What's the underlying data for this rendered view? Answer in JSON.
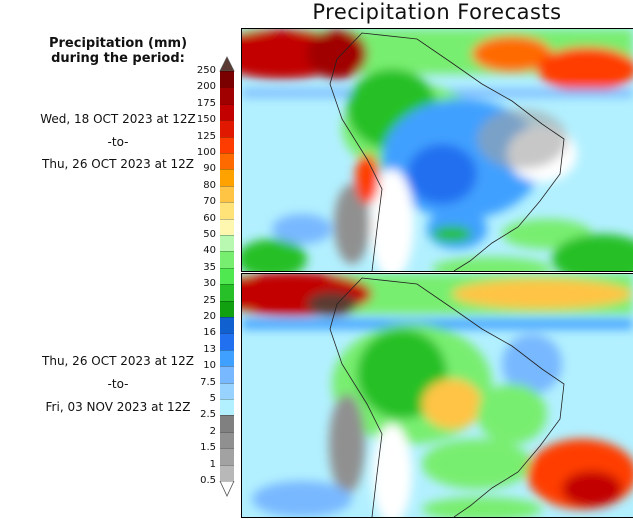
{
  "title": "Precipitation Forecasts",
  "legend": {
    "heading_line1": "Precipitation (mm)",
    "heading_line2": "during the period:",
    "labels": [
      "250",
      "200",
      "175",
      "150",
      "125",
      "100",
      "90",
      "80",
      "70",
      "60",
      "50",
      "40",
      "35",
      "30",
      "25",
      "20",
      "16",
      "13",
      "10",
      "7.5",
      "5",
      "2.5",
      "2",
      "1.5",
      "1",
      "0.5"
    ],
    "bin_colors": [
      "#7a0000",
      "#a00000",
      "#c20000",
      "#e01800",
      "#ff3c00",
      "#ff6a00",
      "#ffa200",
      "#ffc444",
      "#ffe278",
      "#fff6b0",
      "#b8f8b0",
      "#78ee70",
      "#50e850",
      "#28c028",
      "#10a010",
      "#1060d0",
      "#2070f0",
      "#40a0ff",
      "#78b8ff",
      "#98d2ff",
      "#b2f0ff",
      "#808080",
      "#909090",
      "#a2a2a2",
      "#b8b8b8"
    ],
    "over_color": "#5a3a32",
    "under_color": "#ffffff"
  },
  "periods": [
    {
      "start": "Wed, 18 OCT 2023 at 12Z",
      "sep": "-to-",
      "end": "Thu, 26 OCT 2023 at 12Z"
    },
    {
      "start": "Thu, 26 OCT 2023 at 12Z",
      "sep": "-to-",
      "end": "Fri, 03 NOV 2023 at 12Z"
    }
  ]
}
